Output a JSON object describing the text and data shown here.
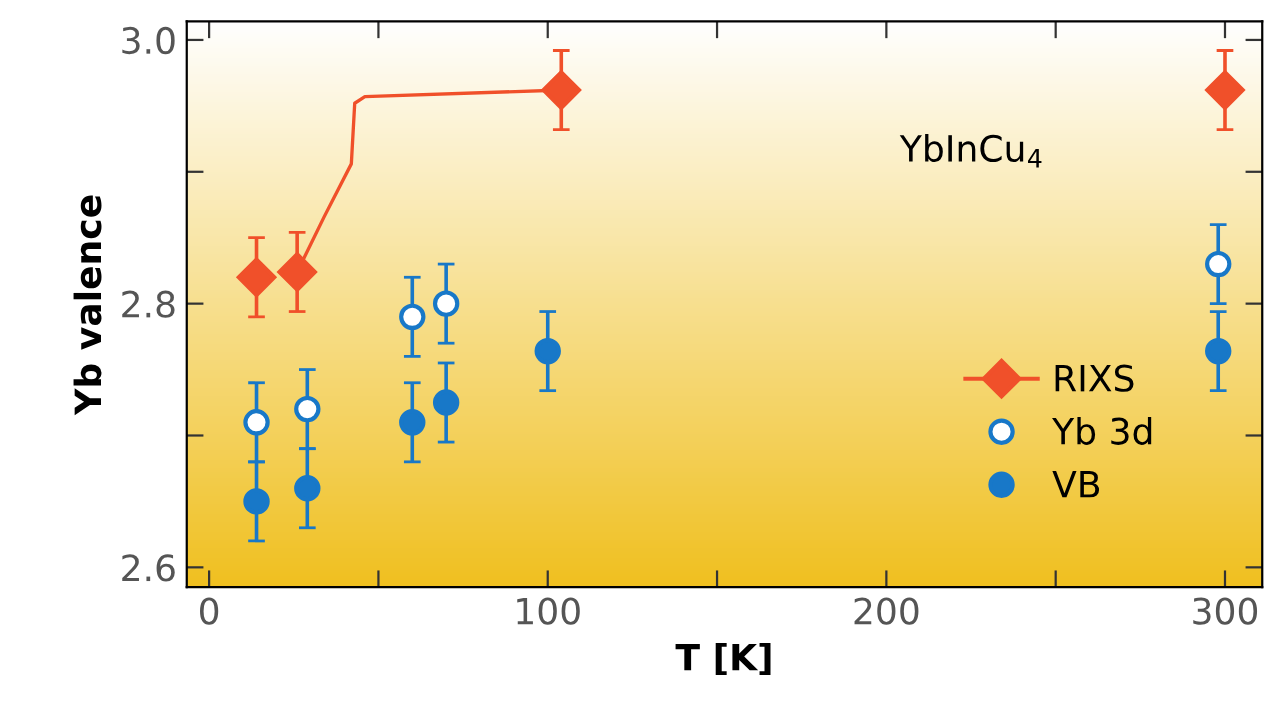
{
  "chart_data": {
    "type": "scatter",
    "xlabel": "T [K]",
    "ylabel": "Yb valence",
    "annotations": [
      "YbInCu$_{4}$"
    ],
    "xlim": [
      -6.6,
      311
    ],
    "ylim": [
      2.585,
      3.014
    ],
    "xticks": [
      0,
      {
        "value": 50,
        "label": null
      },
      100,
      {
        "value": 150,
        "label": null
      },
      200,
      {
        "value": 250,
        "label": null
      },
      300
    ],
    "yticks": [
      2.6,
      {
        "value": 2.7,
        "label": null
      },
      2.8,
      {
        "value": 2.9,
        "label": null
      },
      {
        "value": 3.0,
        "label": "3.0"
      }
    ],
    "grid": false,
    "legend": "right",
    "series": [
      {
        "type": "line",
        "color": "#f0502a",
        "x": [
          26,
          34,
          42,
          43,
          46,
          104
        ],
        "values": [
          2.824,
          2.866,
          2.906,
          2.952,
          2.957,
          2.962
        ],
        "marker": "none"
      },
      {
        "name": "RIXS",
        "color": "#f0502a",
        "marker": "diamond",
        "x": [
          14,
          26,
          104,
          300
        ],
        "values": [
          2.82,
          2.824,
          2.962,
          2.962
        ],
        "errors": [
          0.03,
          0.03,
          0.03,
          0.03
        ]
      },
      {
        "name": "Yb 3d",
        "color": "#1878c8",
        "marker": "circle",
        "x": [
          14,
          29,
          60,
          70,
          298
        ],
        "values": [
          2.71,
          2.72,
          2.79,
          2.8,
          2.83
        ],
        "errors": [
          0.03,
          0.03,
          0.03,
          0.03,
          0.03
        ]
      },
      {
        "name": "VB",
        "color": "#1878c8",
        "marker": "circle",
        "x": [
          14,
          29,
          60,
          70,
          100,
          298
        ],
        "values": [
          2.65,
          2.66,
          2.71,
          2.725,
          2.764,
          2.764
        ],
        "errors": [
          0.03,
          0.03,
          0.03,
          0.03,
          0.03,
          0.03
        ]
      }
    ]
  }
}
